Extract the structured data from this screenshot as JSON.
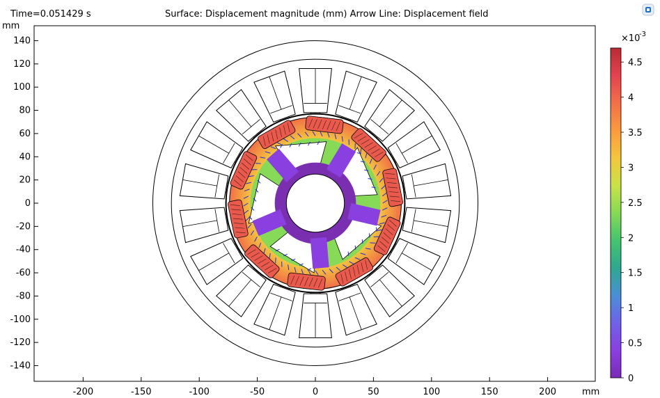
{
  "header": {
    "time_label": "Time=0.051429 s",
    "title": "Surface: Displacement magnitude (mm)  Arrow Line: Displacement field"
  },
  "axes": {
    "y_unit": "mm",
    "x_unit": "mm",
    "y_ticks": [
      "140",
      "120",
      "100",
      "80",
      "60",
      "40",
      "20",
      "0",
      "-20",
      "-40",
      "-60",
      "-80",
      "-100",
      "-120",
      "-140"
    ],
    "x_ticks": [
      "-200",
      "-150",
      "-100",
      "-50",
      "0",
      "50",
      "100",
      "150",
      "200"
    ]
  },
  "colorbar": {
    "exponent_base": "×10",
    "exponent_power": "-3",
    "ticks": [
      "4.5",
      "4",
      "3.5",
      "3",
      "2.5",
      "2",
      "1.5",
      "1",
      "0.5",
      "0"
    ],
    "colors": [
      "#7b2bb5",
      "#8a3fe0",
      "#6f62e8",
      "#4a8fd6",
      "#2fa88f",
      "#45c46e",
      "#86da57",
      "#c9e247",
      "#f4c63e",
      "#fb9a3f",
      "#f27048",
      "#e2434f",
      "#b82b34"
    ]
  },
  "colors": {
    "background": "#ffffff",
    "stroke": "#000000",
    "arrow": "#1f2bd8",
    "rotor_inner": "#7a2fb0"
  },
  "icons": {
    "logo": "comsol-logo-icon"
  }
}
